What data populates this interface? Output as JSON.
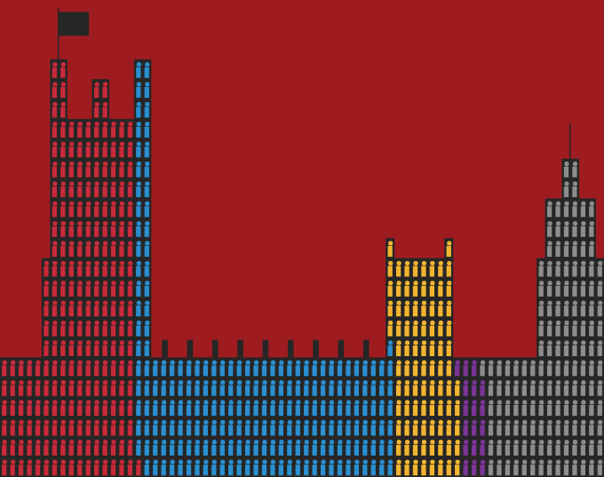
{
  "chart_data": {
    "type": "pictogram",
    "categories": [
      null,
      null,
      null,
      null,
      null
    ],
    "values": [
      232,
      216,
      88,
      18,
      147
    ],
    "colors": [
      "#c92a3a",
      "#2b8fd0",
      "#f2b531",
      "#7b3597",
      "#8d8d8d"
    ],
    "tick_labels": false
  }
}
